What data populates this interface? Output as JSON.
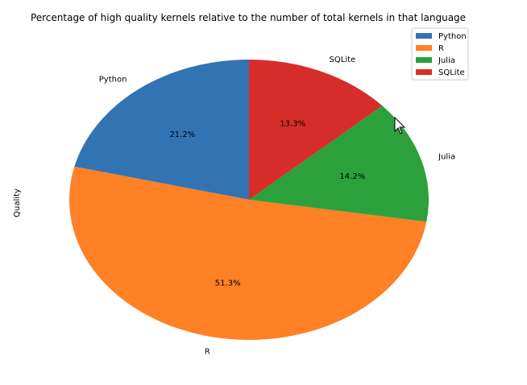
{
  "chart_data": {
    "type": "pie",
    "title": "Percentage of high quality kernels relative to the number of total kernels in that language",
    "ylabel": "Quality",
    "categories": [
      "Python",
      "R",
      "Julia",
      "SQLite"
    ],
    "values": [
      21.2,
      51.3,
      14.2,
      13.3
    ],
    "value_labels": [
      "21.2%",
      "51.3%",
      "14.2%",
      "13.3%"
    ],
    "colors": [
      "#3274b3",
      "#ff8025",
      "#2ca13b",
      "#d62d2a"
    ],
    "legend_entries": [
      "Python",
      "R",
      "Julia",
      "SQLite"
    ],
    "legend_position": "top-right",
    "start_angle_deg": 90,
    "direction": "counterclockwise"
  }
}
